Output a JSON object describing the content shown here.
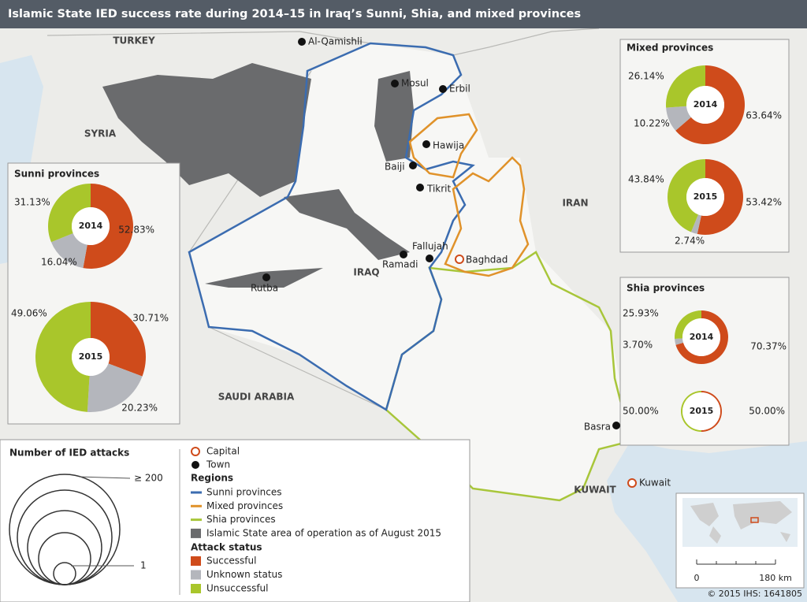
{
  "title": "Islamic State IED success rate during 2014–15 in Iraq’s Sunni, Shia, and mixed provinces",
  "map_labels": {
    "countries": [
      "TURKEY",
      "SYRIA",
      "IRAN",
      "IRAQ",
      "SAUDI ARABIA",
      "KUWAIT"
    ],
    "towns": [
      "Al-Qamishli",
      "Mosul",
      "Erbil",
      "Hawija",
      "Baiji",
      "Tikrit",
      "Fallujah",
      "Ramadi",
      "Rutba",
      "Basra"
    ],
    "capitals": [
      "Baghdad",
      "Kuwait"
    ]
  },
  "panels": [
    {
      "title": "Sunni provinces",
      "pies": [
        {
          "year": "2014",
          "values": [
            52.83,
            16.04,
            31.13
          ],
          "value_labels": [
            "52.83%",
            "16.04%",
            "31.13%"
          ]
        },
        {
          "year": "2015",
          "values": [
            30.71,
            20.23,
            49.06
          ],
          "value_labels": [
            "30.71%",
            "20.23%",
            "49.06%"
          ]
        }
      ]
    },
    {
      "title": "Mixed provinces",
      "pies": [
        {
          "year": "2014",
          "values": [
            63.64,
            10.22,
            26.14
          ],
          "value_labels": [
            "63.64%",
            "10.22%",
            "26.14%"
          ]
        },
        {
          "year": "2015",
          "values": [
            53.42,
            2.74,
            43.84
          ],
          "value_labels": [
            "53.42%",
            "2.74%",
            "43.84%"
          ]
        }
      ]
    },
    {
      "title": "Shia provinces",
      "pies": [
        {
          "year": "2014",
          "values": [
            70.37,
            3.7,
            25.93
          ],
          "value_labels": [
            "70.37%",
            "3.70%",
            "25.93%"
          ]
        },
        {
          "year": "2015",
          "values": [
            50,
            0,
            50
          ],
          "value_labels": [
            "50.00%",
            null,
            "50.00%"
          ]
        }
      ]
    }
  ],
  "legend": {
    "size_title": "Number of IED attacks",
    "size_labels": [
      "≥ 200",
      "1"
    ],
    "capital": "Capital",
    "town": "Town",
    "regions": {
      "title": "Regions",
      "items": [
        {
          "label": "Sunni provinces",
          "color": "#3b6cb0"
        },
        {
          "label": "Mixed provinces",
          "color": "#e0922a"
        },
        {
          "label": "Shia provinces",
          "color": "#a8c63a"
        },
        {
          "label": "Islamic State area of operation as of August 2015",
          "color": "#6a6b6d"
        }
      ]
    },
    "attack_status": {
      "title": "Attack status",
      "items": [
        {
          "label": "Successful",
          "color": "#cf4b1b"
        },
        {
          "label": "Unknown status",
          "color": "#b4b6bc"
        },
        {
          "label": "Unsuccessful",
          "color": "#a9c62b"
        }
      ]
    }
  },
  "scale_bar": {
    "start": "0",
    "end": "180 km"
  },
  "credit": "© 2015 IHS: 1641805"
}
